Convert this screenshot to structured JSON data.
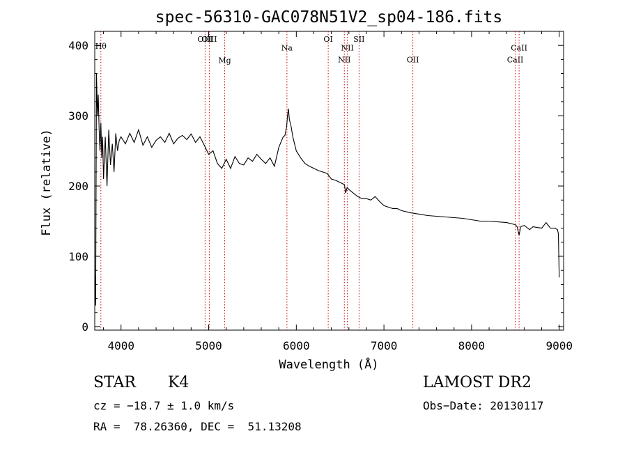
{
  "chart_data": {
    "type": "line",
    "title": "spec-56310-GAC078N51V2_sp04-186.fits",
    "xlabel": "Wavelength (Å)",
    "ylabel": "Flux (relative)",
    "xlim": [
      3700,
      9050
    ],
    "ylim": [
      -5,
      420
    ],
    "grid": false,
    "legend": "none",
    "x_ticks": [
      4000,
      5000,
      6000,
      7000,
      8000,
      9000
    ],
    "y_ticks": [
      0,
      100,
      200,
      300,
      400
    ],
    "x_tick_labels": [
      "4000",
      "5000",
      "6000",
      "7000",
      "8000",
      "9000"
    ],
    "y_tick_labels": [
      "0",
      "100",
      "200",
      "300",
      "400"
    ],
    "line_color": "#000000",
    "marker_color": "#cc0000",
    "series": [
      {
        "x": [
          3700,
          3710,
          3720,
          3730,
          3740,
          3750,
          3760,
          3770,
          3780,
          3790,
          3800,
          3820,
          3840,
          3860,
          3880,
          3900,
          3920,
          3940,
          3960,
          3980,
          4000,
          4050,
          4100,
          4150,
          4200,
          4250,
          4300,
          4350,
          4400,
          4450,
          4500,
          4550,
          4600,
          4650,
          4700,
          4750,
          4800,
          4850,
          4900,
          4950,
          5000,
          5050,
          5100,
          5150,
          5200,
          5250,
          5300,
          5350,
          5400,
          5450,
          5500,
          5550,
          5600,
          5650,
          5700,
          5750,
          5800,
          5850,
          5870,
          5890,
          5900,
          5910,
          5920,
          5940,
          5960,
          6000,
          6050,
          6100,
          6150,
          6200,
          6250,
          6300,
          6350,
          6400,
          6450,
          6500,
          6550,
          6563,
          6580,
          6600,
          6650,
          6700,
          6750,
          6800,
          6850,
          6900,
          6950,
          7000,
          7050,
          7100,
          7150,
          7200,
          7300,
          7400,
          7500,
          7600,
          7700,
          7800,
          7900,
          8000,
          8100,
          8200,
          8300,
          8400,
          8500,
          8520,
          8542,
          8560,
          8600,
          8662,
          8700,
          8800,
          8850,
          8900,
          8950,
          8980,
          8990,
          9000
        ],
        "y": [
          75,
          30,
          360,
          300,
          330,
          280,
          250,
          290,
          240,
          270,
          210,
          270,
          200,
          280,
          230,
          260,
          220,
          275,
          250,
          265,
          270,
          260,
          275,
          262,
          280,
          258,
          270,
          255,
          265,
          270,
          262,
          275,
          260,
          268,
          272,
          266,
          274,
          262,
          270,
          258,
          245,
          250,
          232,
          225,
          238,
          225,
          242,
          232,
          230,
          240,
          235,
          245,
          238,
          232,
          240,
          228,
          255,
          270,
          272,
          285,
          300,
          310,
          295,
          285,
          270,
          250,
          240,
          232,
          228,
          225,
          222,
          220,
          218,
          210,
          208,
          205,
          202,
          190,
          198,
          195,
          190,
          185,
          182,
          182,
          180,
          185,
          178,
          172,
          170,
          168,
          168,
          165,
          162,
          160,
          158,
          157,
          156,
          155,
          154,
          152,
          150,
          150,
          149,
          148,
          145,
          142,
          130,
          142,
          144,
          138,
          142,
          140,
          148,
          140,
          140,
          138,
          132,
          70
        ]
      }
    ],
    "annotations": [
      {
        "label": "Hθ",
        "x": 3770,
        "y_text": 395
      },
      {
        "label": "OIII",
        "x": 4959,
        "y_text": 405
      },
      {
        "label": "OIII",
        "x": 5007,
        "y_text": 405
      },
      {
        "label": "Mg",
        "x": 5183,
        "y_text": 375
      },
      {
        "label": "Na",
        "x": 5893,
        "y_text": 393
      },
      {
        "label": "OI",
        "x": 6364,
        "y_text": 405
      },
      {
        "label": "NII",
        "x": 6548,
        "y_text": 376
      },
      {
        "label": "NII",
        "x": 6583,
        "y_text": 393
      },
      {
        "label": "OII",
        "x": 7330,
        "y_text": 376
      },
      {
        "label": "SII",
        "x": 6716,
        "y_text": 405
      },
      {
        "label": "CaII",
        "x": 8498,
        "y_text": 376
      },
      {
        "label": "CaII",
        "x": 8542,
        "y_text": 393
      }
    ]
  },
  "info": {
    "class_label": "STAR",
    "subclass_label": "K4",
    "survey": "LAMOST DR2",
    "redshift": "cz = −18.7 ± 1.0 km/s",
    "obs_date": "Obs−Date: 20130117",
    "coords": "RA =  78.26360, DEC =  51.13208"
  }
}
